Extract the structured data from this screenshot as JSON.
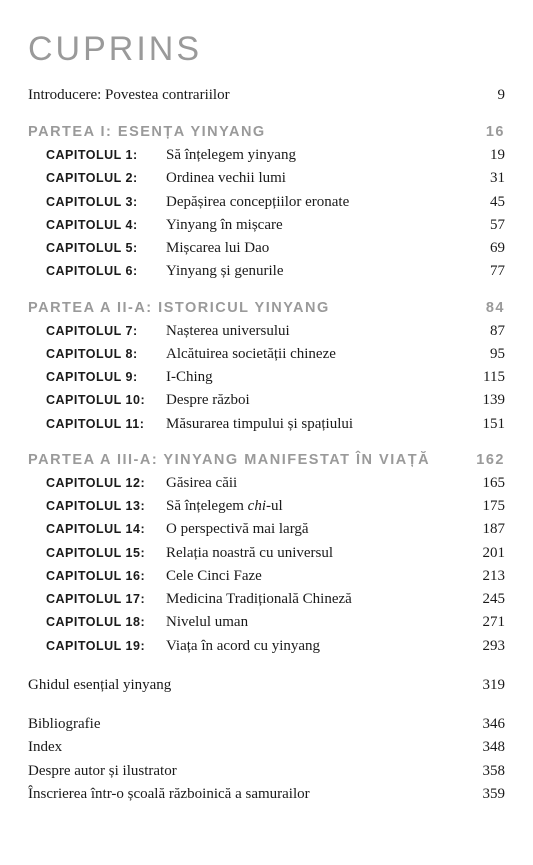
{
  "title": "CUPRINS",
  "intro": {
    "label": "Introducere: Povestea contrariilor",
    "page": "9"
  },
  "parts": [
    {
      "heading": "PARTEA I: ESENȚA YINYANG",
      "page": "16",
      "chapters": [
        {
          "label": "CAPITOLUL 1:",
          "title": "Să înțelegem yinyang",
          "page": "19"
        },
        {
          "label": "CAPITOLUL 2:",
          "title": "Ordinea vechii lumi",
          "page": "31"
        },
        {
          "label": "CAPITOLUL 3:",
          "title": "Depășirea concepțiilor eronate",
          "page": "45"
        },
        {
          "label": "CAPITOLUL 4:",
          "title": "Yinyang în mișcare",
          "page": "57"
        },
        {
          "label": "CAPITOLUL 5:",
          "title": "Mișcarea lui Dao",
          "page": "69"
        },
        {
          "label": "CAPITOLUL 6:",
          "title": "Yinyang și genurile",
          "page": "77"
        }
      ]
    },
    {
      "heading": "PARTEA A II-A: ISTORICUL YINYANG",
      "page": "84",
      "chapters": [
        {
          "label": "CAPITOLUL 7:",
          "title": "Nașterea universului",
          "page": "87"
        },
        {
          "label": "CAPITOLUL 8:",
          "title": "Alcătuirea societății chineze",
          "page": "95"
        },
        {
          "label": "CAPITOLUL 9:",
          "title": "I-Ching",
          "page": "115"
        },
        {
          "label": "CAPITOLUL 10:",
          "title": "Despre război",
          "page": "139"
        },
        {
          "label": "CAPITOLUL 11:",
          "title": "Măsurarea timpului și spațiului",
          "page": "151"
        }
      ]
    },
    {
      "heading": "PARTEA A III-A: YINYANG MANIFESTAT ÎN VIAȚĂ",
      "page": "162",
      "chapters": [
        {
          "label": "CAPITOLUL 12:",
          "title": "Găsirea căii",
          "page": "165"
        },
        {
          "label": "CAPITOLUL 13:",
          "title_html": "Să înțelegem <span class=\"italic\">chi</span>-ul",
          "page": "175"
        },
        {
          "label": "CAPITOLUL 14:",
          "title": "O perspectivă mai largă",
          "page": "187"
        },
        {
          "label": "CAPITOLUL 15:",
          "title": "Relația noastră cu universul",
          "page": "201"
        },
        {
          "label": "CAPITOLUL 16:",
          "title": "Cele Cinci Faze",
          "page": "213"
        },
        {
          "label": "CAPITOLUL 17:",
          "title": "Medicina Tradițională Chineză",
          "page": "245"
        },
        {
          "label": "CAPITOLUL 18:",
          "title": "Nivelul uman",
          "page": "271"
        },
        {
          "label": "CAPITOLUL 19:",
          "title": "Viața în acord cu yinyang",
          "page": "293"
        }
      ]
    }
  ],
  "backmatter": [
    {
      "label": "Ghidul esențial yinyang",
      "page": "319",
      "gap_after": true
    },
    {
      "label": "Bibliografie",
      "page": "346"
    },
    {
      "label": "Index",
      "page": "348"
    },
    {
      "label": "Despre autor și ilustrator",
      "page": "358"
    },
    {
      "label": "Înscrierea într-o școală războinică a samurailor",
      "page": "359"
    }
  ]
}
